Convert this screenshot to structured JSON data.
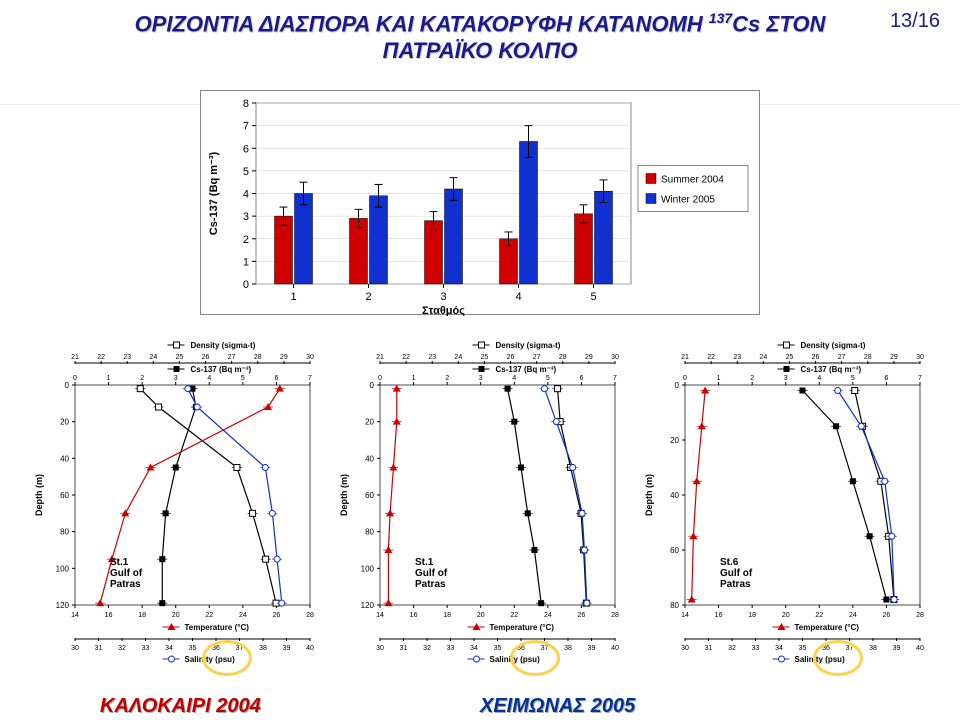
{
  "page": {
    "number": "13/16"
  },
  "title": {
    "line1_a": "ΟΡΙΖΟΝΤΙΑ ΔΙΑΣΠΟΡΑ ΚΑΙ ΚΑΤΑΚΟΡΥΦΗ ΚΑΤΑΝΟΜΗ ",
    "line1_b": "137",
    "line1_c": "Cs ΣΤΟΝ",
    "line2": "ΠΑΤΡΑΪΚΟ ΚΟΛΠΟ"
  },
  "seasons": {
    "summer": "ΚΑΛΟΚΑΙΡΙ 2004",
    "winter": "ΧΕΙΜΩΝΑΣ 2005"
  },
  "main_chart": {
    "type": "bar",
    "y_label": "Cs-137 (Bq m⁻³)",
    "x_label": "Σταθμός",
    "y_ticks": [
      0,
      1,
      2,
      3,
      4,
      5,
      6,
      7,
      8
    ],
    "x_ticks": [
      1,
      2,
      3,
      4,
      5
    ],
    "ylim": [
      0,
      8
    ],
    "series": [
      {
        "name": "Summer 2004",
        "color": "#d00000",
        "values": [
          3.0,
          2.9,
          2.8,
          2.0,
          3.1
        ],
        "err": [
          0.4,
          0.4,
          0.4,
          0.3,
          0.4
        ]
      },
      {
        "name": "Winter 2005",
        "color": "#1030d0",
        "values": [
          4.0,
          3.9,
          4.2,
          6.3,
          4.1
        ],
        "err": [
          0.5,
          0.5,
          0.5,
          0.7,
          0.5
        ]
      }
    ],
    "bg": "#ffffff",
    "grid": "#cccccc",
    "text_color": "#000000",
    "tick_fontsize": 11,
    "label_fontsize": 11
  },
  "profile_common": {
    "density_label": "Density (sigma-t)",
    "cs_label": "Cs-137 (Bq m⁻³)",
    "temp_label": "Temperature (°C)",
    "sal_label": "Salinity (psu)",
    "depth_label": "Depth (m)",
    "density_ticks": [
      21,
      22,
      23,
      24,
      25,
      26,
      27,
      28,
      29,
      30
    ],
    "cs_ticks": [
      0,
      1,
      2,
      3,
      4,
      5,
      6,
      7
    ],
    "temp_ticks": [
      14,
      16,
      18,
      20,
      22,
      24,
      26,
      28
    ],
    "sal_ticks": [
      30,
      31,
      32,
      33,
      34,
      35,
      36,
      37,
      38,
      39,
      40
    ],
    "colors": {
      "density": "#000000",
      "cs": "#000000",
      "temp": "#d00000",
      "sal": "#1030d0"
    }
  },
  "profiles": [
    {
      "station": "St.1\nGulf of\nPatras",
      "depth_ticks": [
        0,
        20,
        40,
        60,
        80,
        100,
        120
      ],
      "density": [
        [
          23.5,
          2
        ],
        [
          24.2,
          12
        ],
        [
          27.2,
          45
        ],
        [
          27.8,
          70
        ],
        [
          28.3,
          95
        ],
        [
          28.7,
          119
        ]
      ],
      "cs": [
        [
          3.5,
          2
        ],
        [
          3.6,
          12
        ],
        [
          3.0,
          45
        ],
        [
          2.7,
          70
        ],
        [
          2.6,
          95
        ],
        [
          2.6,
          119
        ]
      ],
      "temp": [
        [
          26.2,
          2
        ],
        [
          25.5,
          12
        ],
        [
          18.5,
          45
        ],
        [
          17.0,
          70
        ],
        [
          16.2,
          95
        ],
        [
          15.5,
          119
        ]
      ],
      "sal": [
        [
          34.8,
          2
        ],
        [
          35.2,
          12
        ],
        [
          38.1,
          45
        ],
        [
          38.4,
          70
        ],
        [
          38.6,
          95
        ],
        [
          38.8,
          119
        ]
      ]
    },
    {
      "station": "St.1\nGulf of\nPatras",
      "depth_ticks": [
        0,
        20,
        40,
        60,
        80,
        100,
        120
      ],
      "density": [
        [
          27.8,
          2
        ],
        [
          27.9,
          20
        ],
        [
          28.3,
          45
        ],
        [
          28.7,
          70
        ],
        [
          28.8,
          90
        ],
        [
          28.9,
          119
        ]
      ],
      "cs": [
        [
          3.8,
          2
        ],
        [
          4.0,
          20
        ],
        [
          4.2,
          45
        ],
        [
          4.4,
          70
        ],
        [
          4.6,
          90
        ],
        [
          4.8,
          119
        ]
      ],
      "temp": [
        [
          15.0,
          2
        ],
        [
          15.0,
          20
        ],
        [
          14.8,
          45
        ],
        [
          14.6,
          70
        ],
        [
          14.5,
          90
        ],
        [
          14.5,
          119
        ]
      ],
      "sal": [
        [
          37.0,
          2
        ],
        [
          37.5,
          20
        ],
        [
          38.2,
          45
        ],
        [
          38.6,
          70
        ],
        [
          38.7,
          90
        ],
        [
          38.8,
          119
        ]
      ]
    },
    {
      "station": "St.6\nGulf of\nPatras",
      "depth_ticks": [
        0,
        20,
        40,
        60,
        80
      ],
      "density": [
        [
          27.5,
          2
        ],
        [
          27.8,
          15
        ],
        [
          28.5,
          35
        ],
        [
          28.8,
          55
        ],
        [
          29.0,
          78
        ]
      ],
      "cs": [
        [
          3.5,
          2
        ],
        [
          4.5,
          15
        ],
        [
          5.0,
          35
        ],
        [
          5.5,
          55
        ],
        [
          6.0,
          78
        ]
      ],
      "temp": [
        [
          15.2,
          2
        ],
        [
          15.0,
          15
        ],
        [
          14.7,
          35
        ],
        [
          14.5,
          55
        ],
        [
          14.4,
          78
        ]
      ],
      "sal": [
        [
          36.5,
          2
        ],
        [
          37.5,
          15
        ],
        [
          38.5,
          35
        ],
        [
          38.8,
          55
        ],
        [
          38.9,
          78
        ]
      ]
    }
  ]
}
